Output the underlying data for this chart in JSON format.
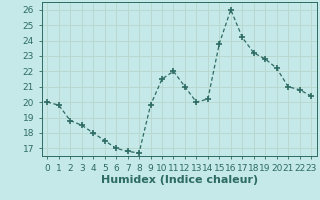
{
  "x": [
    0,
    1,
    2,
    3,
    4,
    5,
    6,
    7,
    8,
    9,
    10,
    11,
    12,
    13,
    14,
    15,
    16,
    17,
    18,
    19,
    20,
    21,
    22,
    23
  ],
  "y": [
    20.0,
    19.8,
    18.8,
    18.5,
    18.0,
    17.5,
    17.0,
    16.8,
    16.7,
    19.8,
    21.5,
    22.0,
    21.0,
    20.0,
    20.2,
    23.8,
    26.0,
    24.2,
    23.2,
    22.8,
    22.2,
    21.0,
    20.8,
    20.4
  ],
  "line_color": "#2d6b63",
  "marker": "+",
  "marker_size": 5,
  "bg_color": "#c5e8e8",
  "grid_color": "#b8d8d0",
  "xlabel": "Humidex (Indice chaleur)",
  "xlabel_fontsize": 8,
  "ylabel_ticks": [
    17,
    18,
    19,
    20,
    21,
    22,
    23,
    24,
    25,
    26
  ],
  "xticks": [
    0,
    1,
    2,
    3,
    4,
    5,
    6,
    7,
    8,
    9,
    10,
    11,
    12,
    13,
    14,
    15,
    16,
    17,
    18,
    19,
    20,
    21,
    22,
    23
  ],
  "xlim": [
    -0.5,
    23.5
  ],
  "ylim": [
    16.5,
    26.5
  ],
  "tick_color": "#2d6b63",
  "tick_fontsize": 6.5
}
